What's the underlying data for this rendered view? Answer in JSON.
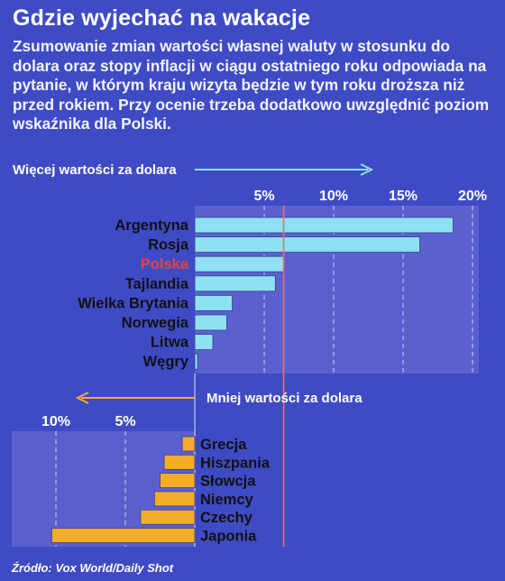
{
  "title": "Gdzie wyjechać na wakacje",
  "subtitle": "Zsumowanie zmian wartości własnej waluty w stosunku do dolara oraz stopy inflacji w ciągu ostatniego roku odpowiada na pytanie, w którym kraju wizyta będzie w tym roku droższa niż przed rokiem. Przy ocenie trzeba dodatkowo uwzględnić poziom wskaźnika dla Polski.",
  "source": "Źródło: Vox World/Daily Shot",
  "colors": {
    "background": "#3f4bc4",
    "panel": "#5a61cf",
    "bar_top": "#8ee0f2",
    "bar_bottom": "#f4ad2a",
    "arrow_top": "#8ee0f2",
    "arrow_bottom": "#f4ad2a",
    "highlight": "#e0433f",
    "reference_line": "#e57070",
    "label_dark": "#111111"
  },
  "chart_data": [
    {
      "type": "bar",
      "orientation": "horizontal",
      "arrow_label": "Więcej wartości za dolara",
      "categories": [
        "Argentyna",
        "Rosja",
        "Polska",
        "Tajlandia",
        "Wielka Brytania",
        "Norwegia",
        "Litwa",
        "Węgry"
      ],
      "values": [
        18.6,
        16.2,
        6.4,
        5.8,
        2.7,
        2.3,
        1.3,
        0.2
      ],
      "highlight": "Polska",
      "reference_value": 6.4,
      "ticks": [
        "5%",
        "10%",
        "15%",
        "20%"
      ],
      "tick_values": [
        5,
        10,
        15,
        20
      ],
      "xlim": [
        0,
        20
      ],
      "grid": true
    },
    {
      "type": "bar",
      "orientation": "horizontal",
      "direction": "leftward",
      "arrow_label": "Mniej wartości za dolara",
      "categories": [
        "Grecja",
        "Hiszpania",
        "Słowcja",
        "Niemcy",
        "Czechy",
        "Japonia"
      ],
      "values": [
        0.9,
        2.2,
        2.5,
        2.9,
        3.9,
        10.3
      ],
      "ticks": [
        "10%",
        "5%"
      ],
      "tick_values": [
        10,
        5
      ],
      "xlim": [
        0,
        13
      ],
      "grid": true
    }
  ]
}
